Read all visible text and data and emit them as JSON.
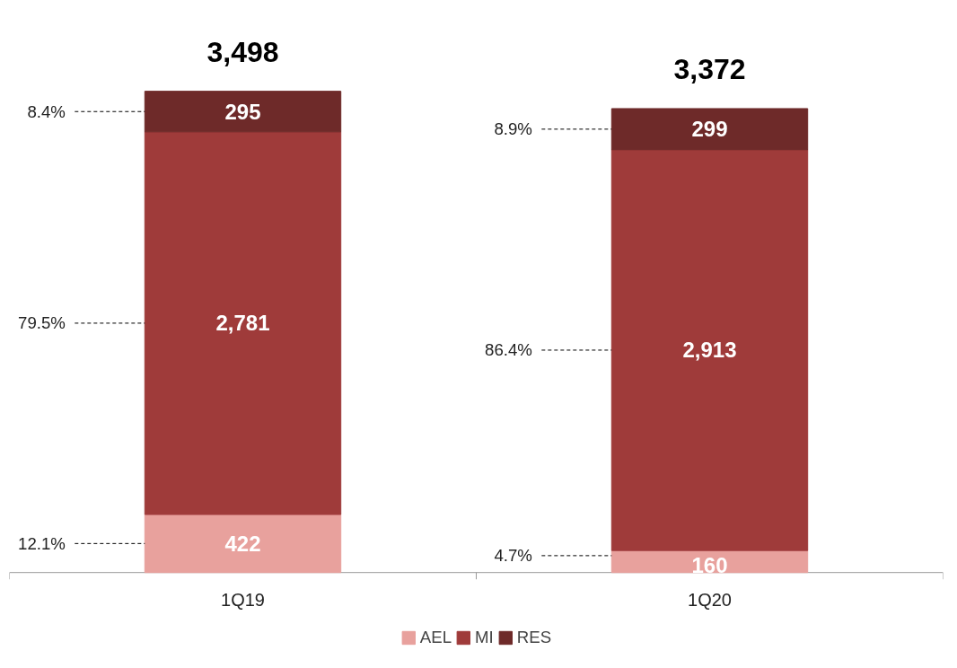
{
  "chart_data": {
    "type": "bar",
    "stacked": true,
    "legend": "bottom",
    "categories": [
      "1Q19",
      "1Q20"
    ],
    "series": [
      {
        "name": "AEL",
        "color": "#e8a19d",
        "values": [
          422,
          160
        ],
        "value_labels": [
          "422",
          "160"
        ]
      },
      {
        "name": "MI",
        "color": "#9f3b3a",
        "values": [
          2781,
          2913
        ],
        "value_labels": [
          "2,781",
          "2,913"
        ]
      },
      {
        "name": "RES",
        "color": "#6e2a29",
        "values": [
          295,
          299
        ],
        "value_labels": [
          "295",
          "299"
        ]
      }
    ],
    "totals": [
      "3,498",
      "3,372"
    ],
    "annotations": [
      "12.1%",
      "79.5%",
      "8.4%",
      "4.7%",
      "86.4%",
      "8.9%"
    ]
  }
}
